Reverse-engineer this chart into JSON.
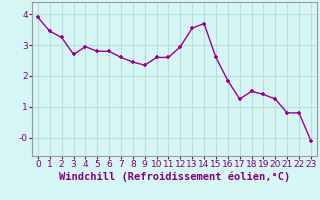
{
  "x": [
    0,
    1,
    2,
    3,
    4,
    5,
    6,
    7,
    8,
    9,
    10,
    11,
    12,
    13,
    14,
    15,
    16,
    17,
    18,
    19,
    20,
    21,
    22,
    23
  ],
  "y": [
    3.9,
    3.45,
    3.25,
    2.7,
    2.95,
    2.8,
    2.8,
    2.6,
    2.45,
    2.35,
    2.6,
    2.6,
    2.95,
    3.55,
    3.7,
    2.6,
    1.85,
    1.25,
    1.5,
    1.4,
    1.25,
    0.8,
    0.8,
    -0.1
  ],
  "line_color": "#990099",
  "marker": "+",
  "bg_color": "#d6f5f5",
  "grid_color": "#b8dede",
  "xlabel": "Windchill (Refroidissement éolien,°C)",
  "xlabel_fontsize": 7.5,
  "tick_fontsize": 6.5,
  "ylim": [
    -0.6,
    4.4
  ],
  "xlim": [
    -0.5,
    23.5
  ],
  "yticks": [
    0,
    1,
    2,
    3,
    4
  ],
  "ytick_labels": [
    "-0",
    "1",
    "2",
    "3",
    "4"
  ],
  "xticks": [
    0,
    1,
    2,
    3,
    4,
    5,
    6,
    7,
    8,
    9,
    10,
    11,
    12,
    13,
    14,
    15,
    16,
    17,
    18,
    19,
    20,
    21,
    22,
    23
  ],
  "line_width": 1.0,
  "marker_size": 3,
  "label_color": "#800080"
}
